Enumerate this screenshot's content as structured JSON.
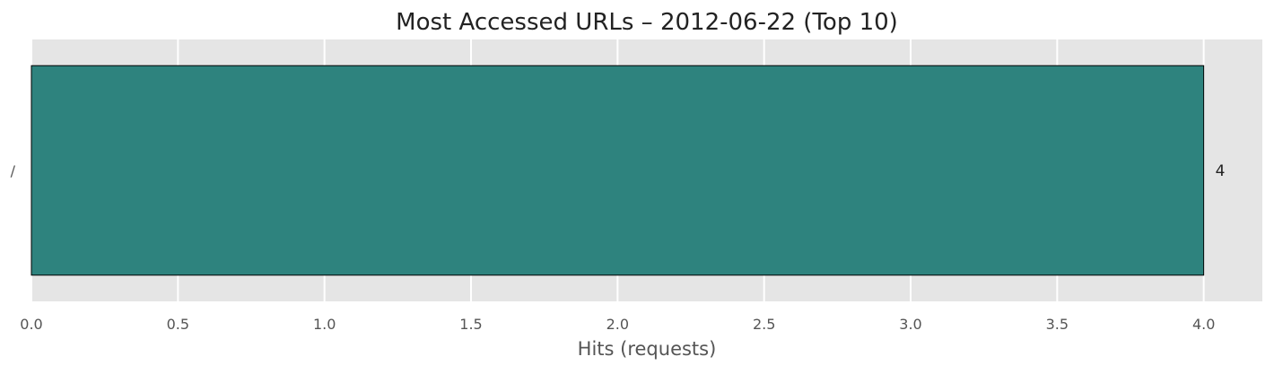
{
  "chart_data": {
    "type": "bar",
    "orientation": "horizontal",
    "title": "Most Accessed URLs – 2012-06-22 (Top 10)",
    "xlabel": "Hits (requests)",
    "ylabel": "",
    "categories": [
      "/"
    ],
    "values": [
      4
    ],
    "data_labels": [
      "4"
    ],
    "xlim": [
      0,
      4.2
    ],
    "xticks": [
      0.0,
      0.5,
      1.0,
      1.5,
      2.0,
      2.5,
      3.0,
      3.5,
      4.0
    ],
    "xtick_labels": [
      "0.0",
      "0.5",
      "1.0",
      "1.5",
      "2.0",
      "2.5",
      "3.0",
      "3.5",
      "4.0"
    ],
    "grid": true,
    "legend": "none",
    "colors": {
      "bar": "#2e837e",
      "bar_edge": "#000000",
      "plot_background": "#e5e5e5",
      "grid": "#ffffff",
      "text": "#222222",
      "tick_text": "#555555"
    }
  }
}
